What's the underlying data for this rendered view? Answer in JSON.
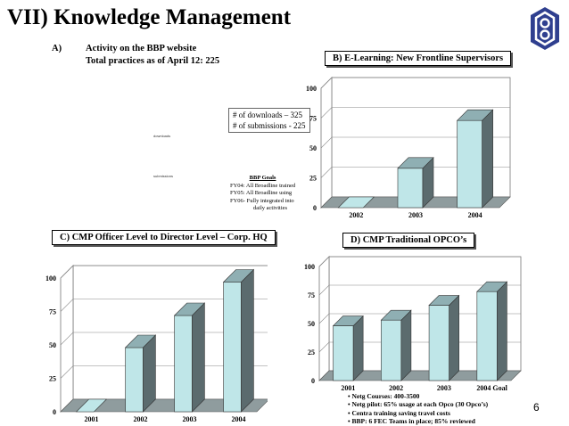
{
  "page": {
    "title": "VII) Knowledge Management",
    "page_number": "6",
    "logo_icon": "ssi-corporate-logo-icon"
  },
  "section_a": {
    "label": "A)",
    "line1": "Activity on the BBP website",
    "line2": "Total practices as of April 12: 225",
    "legend_downloads": "# of downloads – 325",
    "legend_submissions": "# of submissions - 225",
    "tiny_downloads": "downloads",
    "tiny_submissions": "submissions",
    "goals_header": "BBP Goals",
    "goals": [
      "FY04: All Broadline trained",
      "FY05: All Broadline using",
      "FY06- Fully integrated into",
      "daily activities"
    ]
  },
  "notes": [
    "• Netg Courses:  400-3500",
    "• Netg pilot:  65% usage at each Opco (30 Opco’s)",
    "• Centra training saving travel costs",
    "•  BBP:  6 FEC Teams in place; 85% reviewed"
  ],
  "colors": {
    "bar_face": "#bfe6e8",
    "bar_top": "#8fafb3",
    "bar_side": "#5b6b6e",
    "floor": "#8f9c9e",
    "wall_border": "#777777"
  },
  "chart_data": [
    {
      "id": "B",
      "type": "bar",
      "title": "B) E-Learning: New Frontline Supervisors",
      "categories": [
        "2002",
        "2003",
        "2004"
      ],
      "values": [
        0,
        33,
        73
      ],
      "ylim": [
        0,
        100
      ],
      "yticks": [
        "0",
        "25",
        "50",
        "75",
        "100"
      ],
      "grid": true
    },
    {
      "id": "C",
      "type": "bar",
      "title": "C)  CMP Officer Level to Director Level – Corp. HQ",
      "categories": [
        "2001",
        "2002",
        "2003",
        "2004"
      ],
      "values": [
        0,
        48,
        72,
        97
      ],
      "ylim": [
        0,
        100
      ],
      "yticks": [
        "0",
        "25",
        "50",
        "75",
        "100"
      ],
      "grid": true
    },
    {
      "id": "D",
      "type": "bar",
      "title": "D)  CMP Traditional OPCO’s",
      "categories": [
        "2001",
        "2002",
        "2003",
        "2004  Goal"
      ],
      "values": [
        48,
        53,
        66,
        78
      ],
      "ylim": [
        0,
        100
      ],
      "yticks": [
        "0",
        "25",
        "50",
        "75",
        "100"
      ],
      "grid": true
    }
  ]
}
